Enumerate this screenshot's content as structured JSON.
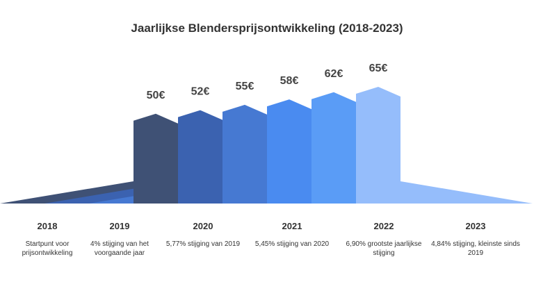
{
  "chart_data": {
    "type": "bar",
    "title": "Jaarlijkse Blendersprijsontwikkeling (2018-2023)",
    "categories": [
      "2018",
      "2019",
      "2020",
      "2021",
      "2022",
      "2023"
    ],
    "values": [
      50,
      52,
      55,
      58,
      62,
      65
    ],
    "value_labels": [
      "50€",
      "52€",
      "55€",
      "58€",
      "62€",
      "65€"
    ],
    "descriptions": [
      "Startpunt voor prijsontwikkeling",
      "4% stijging van het voorgaande jaar",
      "5,77% stijging van 2019",
      "5,45% stijging van 2020",
      "6,90% grootste jaarlijkse stijging",
      "4,84% stijging, kleinste sinds 2019"
    ],
    "colors": [
      "#3f5175",
      "#3b62b0",
      "#4679d2",
      "#4a8bf0",
      "#5a9cf6",
      "#95bdfb"
    ]
  }
}
